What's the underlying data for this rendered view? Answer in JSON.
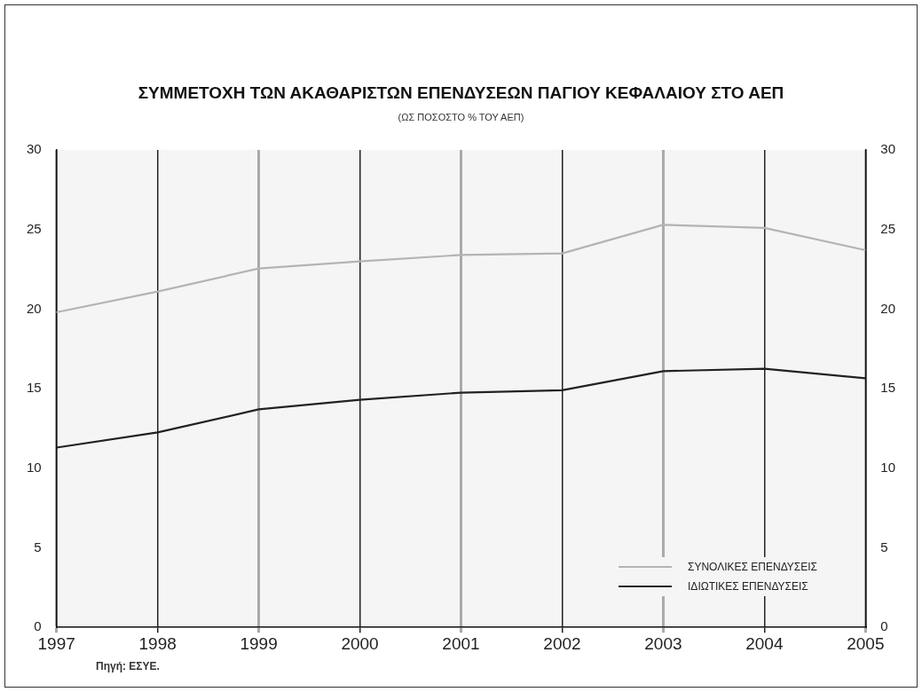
{
  "chart_data": {
    "type": "line",
    "title": "ΣΥΜΜΕΤΟΧΗ ΤΩΝ ΑΚΑΘΑΡΙΣΤΩΝ ΕΠΕΝΔΥΣΕΩΝ ΠΑΓΙΟΥ ΚΕΦΑΛΑΙΟΥ ΣΤΟ ΑΕΠ",
    "subtitle": "(ΩΣ ΠΟΣΟΣΤΟ % ΤΟΥ ΑΕΠ)",
    "annotations": [
      "Πηγή: ΕΣΥΕ."
    ],
    "categories": [
      "1997",
      "1998",
      "1999",
      "2000",
      "2001",
      "2002",
      "2003",
      "2004",
      "2005"
    ],
    "series": [
      {
        "name": "ΣΥΝΟΛΙΚΕΣ ΕΠΕΝΔΥΣΕΙΣ",
        "color": "#b4b4b4",
        "values": [
          19.8,
          21.1,
          22.55,
          23.0,
          23.4,
          23.5,
          25.3,
          25.1,
          23.7
        ]
      },
      {
        "name": "ΙΔΙΩΤΙΚΕΣ ΕΠΕΝΔΥΣΕΙΣ",
        "color": "#222222",
        "values": [
          11.3,
          12.25,
          13.7,
          14.3,
          14.75,
          14.9,
          16.1,
          16.25,
          15.65
        ]
      }
    ],
    "ylim": [
      0,
      30
    ],
    "yticks": [
      0,
      5,
      10,
      15,
      20,
      25,
      30
    ],
    "y2lim": [
      0,
      30
    ],
    "y2ticks": [
      0,
      5,
      10,
      15,
      20,
      25,
      30
    ],
    "grid": "x",
    "legend": "bottom right",
    "marker": "none",
    "line_style": "solid"
  }
}
